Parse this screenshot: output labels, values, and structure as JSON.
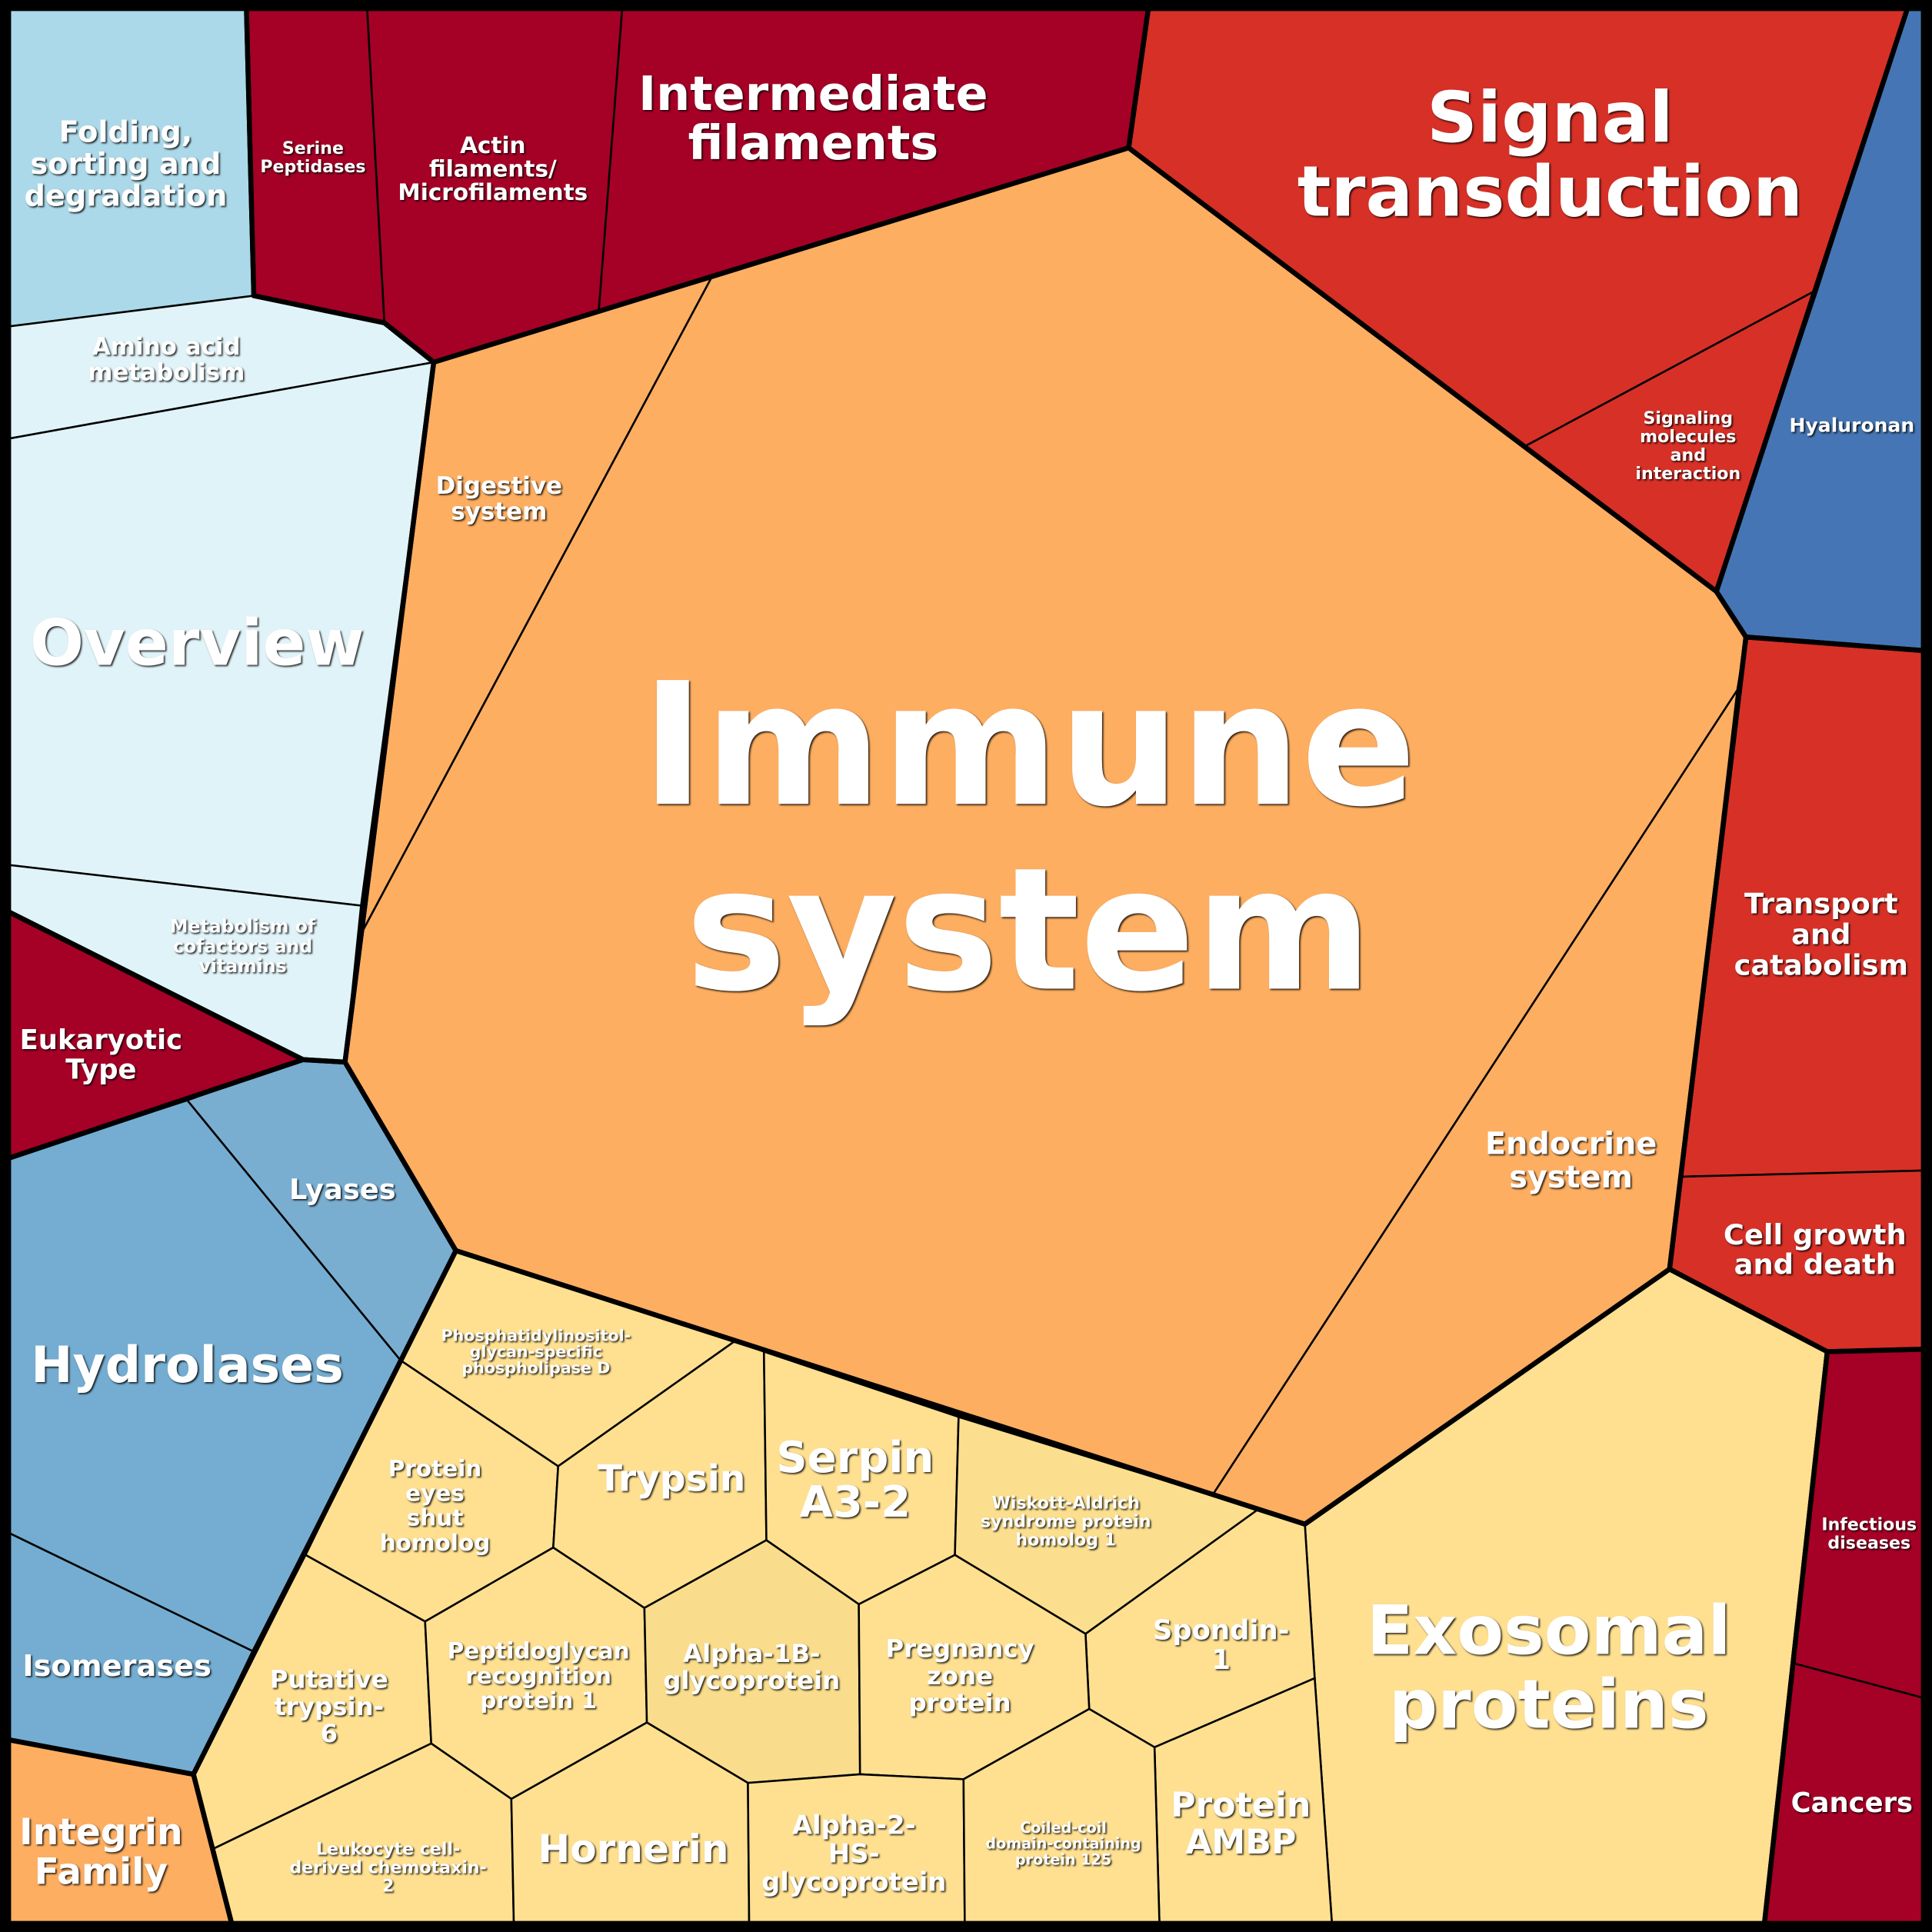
{
  "palette": {
    "dark_red": "#a50026",
    "red": "#d73027",
    "orange": "#fdae61",
    "yellow": "#fee090",
    "light_blue": "#abd9e9",
    "pale_blue": "#e0f3f8",
    "mid_blue": "#74add1",
    "blue": "#4575b4"
  },
  "cells": [
    {
      "label": [
        "Immune",
        "system"
      ],
      "color": "#fdae61"
    },
    {
      "label": [
        "Digestive",
        "system"
      ],
      "color": "#fdae61"
    },
    {
      "label": [
        "Endocrine",
        "system"
      ],
      "color": "#fdae61"
    },
    {
      "label": [
        "Signal",
        "transduction"
      ],
      "color": "#d73027"
    },
    {
      "label": [
        "Signaling",
        "molecules",
        "and",
        "interaction"
      ],
      "color": "#d73027"
    },
    {
      "label": [
        "Hyaluronan"
      ],
      "color": "#4575b4"
    },
    {
      "label": [
        "Transport",
        "and",
        "catabolism"
      ],
      "color": "#d73027"
    },
    {
      "label": [
        "Cell growth",
        "and death"
      ],
      "color": "#d73027"
    },
    {
      "label": [
        "Infectious",
        "diseases"
      ],
      "color": "#a50026"
    },
    {
      "label": [
        "Cancers"
      ],
      "color": "#a50026"
    },
    {
      "label": [
        "Exosomal",
        "proteins"
      ],
      "color": "#fee090"
    },
    {
      "label": [
        "Protein",
        "AMBP"
      ],
      "color": "#fee090"
    },
    {
      "label": [
        "Spondin-",
        "1"
      ],
      "color": "#fee090"
    },
    {
      "label": [
        "Serine",
        "Peptidases"
      ],
      "color": "#a50026"
    },
    {
      "label": [
        "Actin",
        "filaments/",
        "Microfilaments"
      ],
      "color": "#a50026"
    },
    {
      "label": [
        "Intermediate",
        "filaments"
      ],
      "color": "#a50026"
    },
    {
      "label": [
        "Folding,",
        "sorting and",
        "degradation"
      ],
      "color": "#abd9e9"
    },
    {
      "label": [
        "Amino acid",
        "metabolism"
      ],
      "color": "#e0f3f8"
    },
    {
      "label": [
        "Overview"
      ],
      "color": "#e0f3f8"
    },
    {
      "label": [
        "Metabolism of",
        "cofactors and",
        "vitamins"
      ],
      "color": "#e0f3f8"
    },
    {
      "label": [
        "Eukaryotic",
        "Type"
      ],
      "color": "#a50026"
    },
    {
      "label": [
        "Lyases"
      ],
      "color": "#7aaed1"
    },
    {
      "label": [
        "Hydrolases"
      ],
      "color": "#74add1"
    },
    {
      "label": [
        "Isomerases"
      ],
      "color": "#74add1"
    },
    {
      "label": [
        "Integrin",
        "Family"
      ],
      "color": "#fdae61"
    },
    {
      "label": [
        "Phosphatidylinositol-",
        "glycan-specific",
        "phospholipase D"
      ],
      "color": "#fee090"
    },
    {
      "label": [
        "Protein",
        "eyes",
        "shut",
        "homolog"
      ],
      "color": "#fee090"
    },
    {
      "label": [
        "Trypsin"
      ],
      "color": "#fee090"
    },
    {
      "label": [
        "Serpin",
        "A3-2"
      ],
      "color": "#fee090"
    },
    {
      "label": [
        "Wiskott-Aldrich",
        "syndrome protein",
        "homolog 1"
      ],
      "color": "#fbdf8e"
    },
    {
      "label": [
        "Putative",
        "trypsin-",
        "6"
      ],
      "color": "#fee090"
    },
    {
      "label": [
        "Peptidoglycan",
        "recognition",
        "protein 1"
      ],
      "color": "#fee090"
    },
    {
      "label": [
        "Alpha-1B-",
        "glycoprotein"
      ],
      "color": "#f9dd8c"
    },
    {
      "label": [
        "Pregnancy",
        "zone",
        "protein"
      ],
      "color": "#fee090"
    },
    {
      "label": [
        "Leukocyte cell-",
        "derived chemotaxin-",
        "2"
      ],
      "color": "#fee090"
    },
    {
      "label": [
        "Hornerin"
      ],
      "color": "#fee090"
    },
    {
      "label": [
        "Alpha-2-",
        "HS-",
        "glycoprotein"
      ],
      "color": "#fee090"
    },
    {
      "label": [
        "Coiled-coil",
        "domain-containing",
        "protein 125"
      ],
      "color": "#fee090"
    }
  ]
}
